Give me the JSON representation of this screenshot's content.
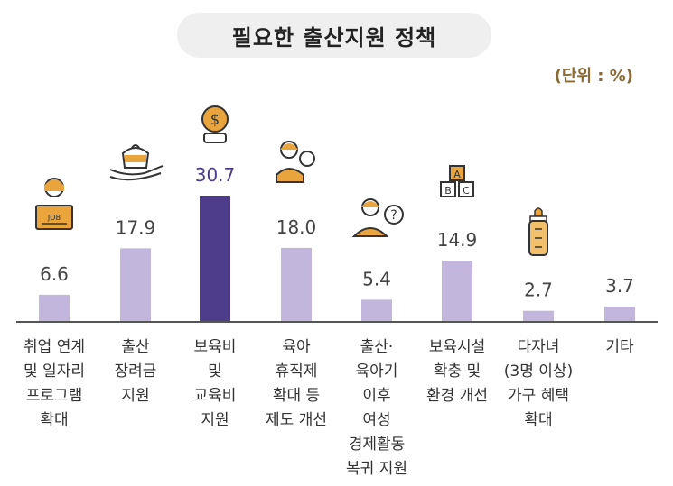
{
  "title": "필요한 출산지원 정책",
  "unit": "(단위 : %)",
  "colors": {
    "bar": "#c2b6dd",
    "highlight": "#4e3d8a",
    "icon": "#e9a43b",
    "axis": "#555555"
  },
  "chart_data": {
    "type": "bar",
    "categories": [
      "취업 연계\n및 일자리\n프로그램\n확대",
      "출산\n장려금\n지원",
      "보육비\n및\n교육비\n지원",
      "육아\n휴직제\n확대 등\n제도 개선",
      "출산·\n육아기\n이후\n여성\n경제활동\n복귀 지원",
      "보육시설\n확충 및\n환경 개선",
      "다자녀\n(3명 이상)\n가구 혜택\n확대",
      "기타"
    ],
    "values": [
      6.6,
      17.9,
      30.7,
      18.0,
      5.4,
      14.9,
      2.7,
      3.7
    ],
    "value_labels": [
      "6.6",
      "17.9",
      "30.7",
      "18.0",
      "5.4",
      "14.9",
      "2.7",
      "3.7"
    ],
    "highlight_index": 2,
    "icons": [
      "job-worker-icon",
      "cash-pouch-hand-icon",
      "coin-money-icon",
      "parent-child-icon",
      "woman-question-icon",
      "abc-blocks-icon",
      "baby-bottle-icon",
      null
    ],
    "ylim": [
      0,
      32
    ]
  }
}
